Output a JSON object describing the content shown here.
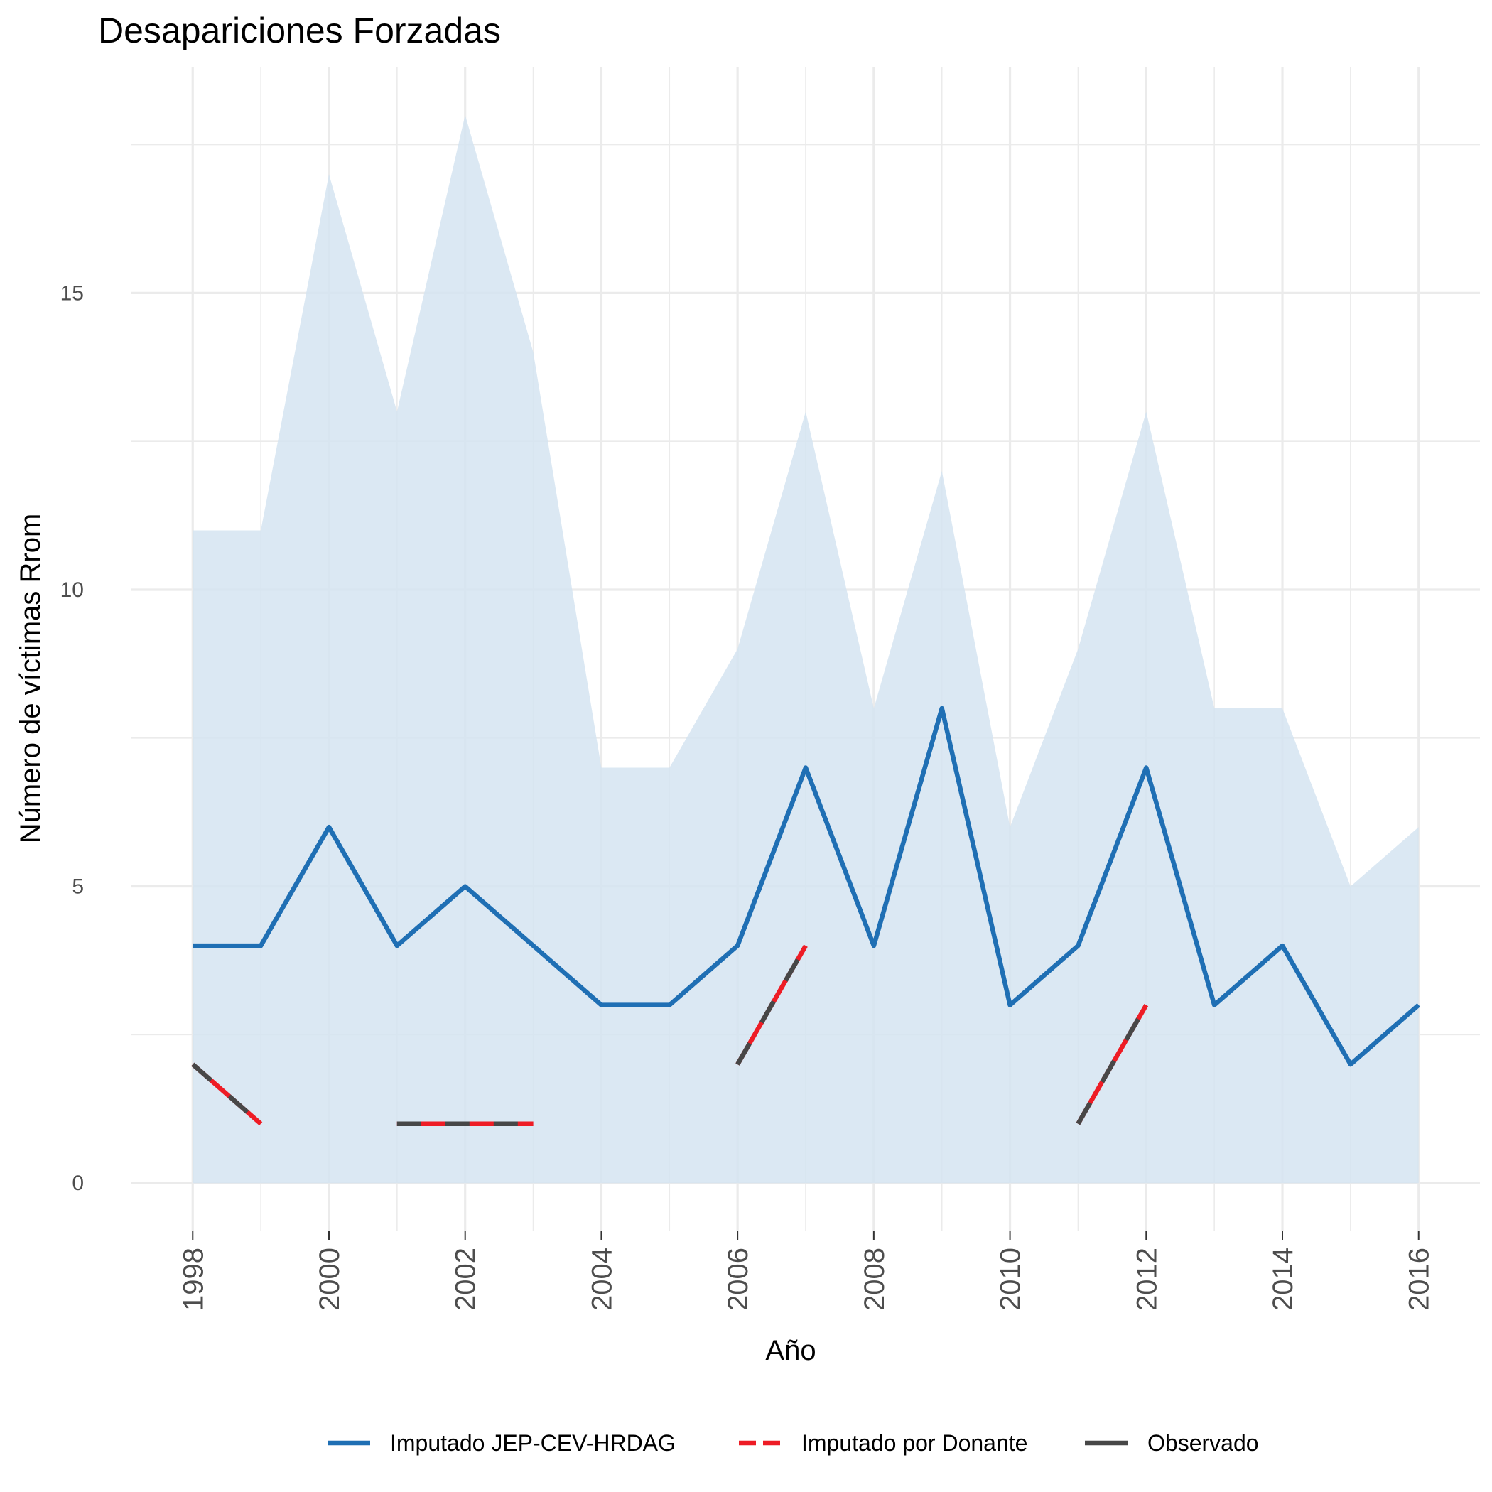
{
  "chart_data": {
    "type": "line",
    "title": "Desapariciones Forzadas",
    "xlabel": "Año",
    "ylabel": "Número de víctimas Rrom",
    "x": [
      1998,
      1999,
      2000,
      2001,
      2002,
      2003,
      2004,
      2005,
      2006,
      2007,
      2008,
      2009,
      2010,
      2011,
      2012,
      2013,
      2014,
      2015,
      2016
    ],
    "xticks": [
      "1998",
      "2000",
      "2002",
      "2004",
      "2006",
      "2008",
      "2010",
      "2012",
      "2014",
      "2016"
    ],
    "yticks": [
      "0",
      "5",
      "10",
      "15"
    ],
    "xlim": [
      1997.1,
      2016.9
    ],
    "ylim": [
      -0.8,
      18.8
    ],
    "grid": true,
    "legend_position": "bottom",
    "band": {
      "series": "Imputado JEP-CEV-HRDAG",
      "lower": [
        0,
        0,
        0,
        0,
        0,
        0,
        0,
        0,
        0,
        0,
        0,
        0,
        0,
        0,
        0,
        0,
        0,
        0,
        0
      ],
      "upper": [
        11,
        11,
        17,
        13,
        18,
        14,
        7,
        7,
        9,
        13,
        8,
        12,
        6,
        9,
        13,
        8,
        8,
        5,
        6
      ]
    },
    "series": [
      {
        "name": "Imputado JEP-CEV-HRDAG",
        "color": "#1f6fb4",
        "values": [
          4,
          4,
          6,
          4,
          5,
          4,
          3,
          3,
          4,
          7,
          4,
          8,
          3,
          4,
          7,
          3,
          4,
          2,
          3
        ]
      },
      {
        "name": "Imputado por Donante",
        "color": "#ee1c25",
        "values": [
          2,
          1,
          null,
          1,
          1,
          1,
          null,
          null,
          2,
          4,
          null,
          null,
          null,
          1,
          3,
          null,
          null,
          null,
          null
        ]
      },
      {
        "name": "Observado",
        "color": "#474747",
        "values": [
          2,
          1,
          null,
          1,
          1,
          1,
          null,
          null,
          2,
          4,
          null,
          null,
          null,
          1,
          3,
          null,
          null,
          null,
          null
        ]
      }
    ],
    "colors": {
      "band": "#d3e3f0",
      "grid": "#ebebeb"
    }
  }
}
